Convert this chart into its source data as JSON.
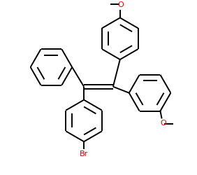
{
  "bg_color": "#ffffff",
  "bond_color": "#000000",
  "o_color": "#ff0000",
  "br_color": "#cc0000",
  "figsize": [
    2.82,
    2.5
  ],
  "dpi": 100,
  "c1": [
    120,
    127
  ],
  "c2": [
    162,
    127
  ],
  "ring_r": 30,
  "bond_lw": 1.4,
  "inner_scale": 0.67
}
